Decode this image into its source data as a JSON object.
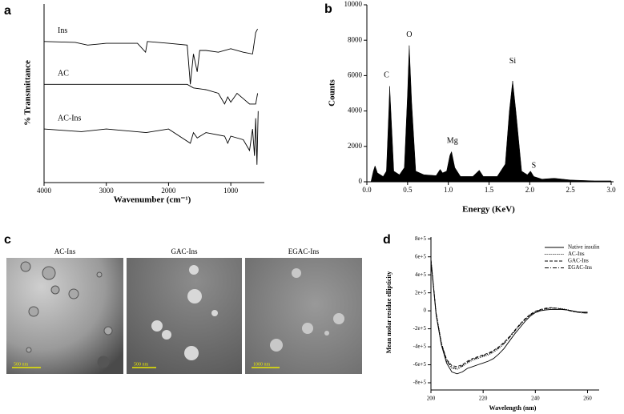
{
  "chart_data": [
    {
      "type": "line",
      "panel_label": "a",
      "xlabel": "Wavenumber (cm⁻¹)",
      "ylabel": "% Transmittance",
      "xlim": [
        4000,
        500
      ],
      "xticks": [
        4000,
        3000,
        2000,
        1000
      ],
      "ylim": [
        0,
        100
      ],
      "series": [
        {
          "name": "Ins",
          "color": "#000000",
          "x": [
            4000,
            3500,
            3300,
            3000,
            2500,
            2370,
            2340,
            2000,
            1700,
            1650,
            1600,
            1540,
            1500,
            1400,
            1200,
            1000,
            800,
            650,
            600,
            570
          ],
          "values": [
            79,
            78.5,
            77,
            78,
            78,
            73,
            79,
            78,
            77,
            55,
            72,
            62,
            74,
            74,
            73,
            75,
            73,
            72,
            84,
            86
          ]
        },
        {
          "name": "AC",
          "color": "#000000",
          "x": [
            4000,
            3500,
            3000,
            2500,
            2000,
            1700,
            1600,
            1400,
            1200,
            1100,
            1050,
            1000,
            900,
            800,
            700,
            600,
            570
          ],
          "values": [
            55,
            55,
            55,
            55,
            55,
            55,
            53,
            52,
            50,
            44,
            48,
            45,
            50,
            47,
            44,
            44,
            50
          ]
        },
        {
          "name": "AC-Ins",
          "color": "#000000",
          "x": [
            4000,
            3400,
            3000,
            2360,
            2000,
            1650,
            1600,
            1540,
            1400,
            1100,
            1050,
            1000,
            800,
            700,
            650,
            620,
            600,
            580,
            560
          ],
          "values": [
            30,
            28.5,
            30,
            28,
            30,
            22,
            28,
            25,
            28,
            26,
            22,
            26,
            24,
            18,
            30,
            15,
            36,
            10,
            40
          ]
        }
      ]
    },
    {
      "type": "area",
      "panel_label": "b",
      "xlabel": "Energy (KeV)",
      "ylabel": "Counts",
      "xlim": [
        0,
        3
      ],
      "ylim": [
        0,
        10000
      ],
      "xticks": [
        {
          "value": 0,
          "label": "0.0"
        },
        0.5,
        {
          "value": 1,
          "label": "1.0"
        },
        1.5,
        {
          "value": 2,
          "label": "2.0"
        },
        2.5,
        {
          "value": 3,
          "label": "3.0"
        }
      ],
      "yticks": [
        0,
        2000,
        4000,
        6000,
        8000,
        10000
      ],
      "series": [
        {
          "name": "Counts",
          "color": "#000000",
          "x": [
            0.05,
            0.08,
            0.1,
            0.13,
            0.2,
            0.24,
            0.27,
            0.28,
            0.3,
            0.33,
            0.4,
            0.46,
            0.5,
            0.52,
            0.55,
            0.6,
            0.7,
            0.85,
            0.9,
            0.93,
            0.98,
            1.02,
            1.04,
            1.08,
            1.15,
            1.3,
            1.38,
            1.43,
            1.6,
            1.7,
            1.75,
            1.79,
            1.83,
            1.9,
            1.97,
            2.01,
            2.05,
            2.15,
            2.3,
            2.5,
            2.8,
            3.0
          ],
          "values": [
            0,
            600,
            900,
            500,
            300,
            600,
            4000,
            5400,
            3500,
            600,
            400,
            800,
            5000,
            7700,
            4500,
            600,
            400,
            350,
            700,
            500,
            600,
            1500,
            1700,
            800,
            300,
            300,
            650,
            300,
            300,
            1000,
            4000,
            5700,
            4000,
            600,
            400,
            600,
            300,
            150,
            200,
            100,
            50,
            50
          ]
        }
      ],
      "annotations": [
        {
          "text": "C",
          "x": 0.24,
          "y": 6000
        },
        {
          "text": "O",
          "x": 0.52,
          "y": 8300
        },
        {
          "text": "Mg",
          "x": 1.05,
          "y": 2300
        },
        {
          "text": "Si",
          "x": 1.79,
          "y": 6800
        },
        {
          "text": "S",
          "x": 2.05,
          "y": 900
        }
      ]
    },
    {
      "type": "image",
      "panel_label": "c",
      "panels": [
        {
          "title": "AC-Ins",
          "scale_bar": "500 nm"
        },
        {
          "title": "GAC-Ins",
          "scale_bar": "500 nm"
        },
        {
          "title": "EGAC-Ins",
          "scale_bar": "1000 nm"
        }
      ]
    },
    {
      "type": "line",
      "panel_label": "d",
      "xlabel": "Wavelength (nm)",
      "ylabel": "Mean molar residue ellipticity",
      "xlim": [
        200,
        262
      ],
      "xticks": [
        200,
        220,
        240,
        260
      ],
      "ylim": [
        -880000,
        820000
      ],
      "yticks": [
        {
          "value": -800000,
          "label": "-8e+5"
        },
        {
          "value": -600000,
          "label": "-6e+5"
        },
        {
          "value": -400000,
          "label": "-4e+5"
        },
        {
          "value": -200000,
          "label": "-2e+5"
        },
        0,
        {
          "value": 200000,
          "label": "2e+5"
        },
        {
          "value": 400000,
          "label": "4e+5"
        },
        {
          "value": 600000,
          "label": "6e+5"
        },
        {
          "value": 800000,
          "label": "8e+5"
        }
      ],
      "x": [
        200,
        202,
        204,
        206,
        208,
        210,
        212,
        214,
        216,
        218,
        220,
        222,
        224,
        226,
        228,
        230,
        232,
        234,
        236,
        238,
        240,
        242,
        244,
        246,
        248,
        250,
        252,
        254,
        256,
        258,
        260
      ],
      "series": [
        {
          "name": "Native insulin",
          "color": "#000000",
          "dash": "solid",
          "values": [
            550000,
            -50000,
            -380000,
            -580000,
            -680000,
            -700000,
            -680000,
            -640000,
            -620000,
            -600000,
            -580000,
            -560000,
            -530000,
            -480000,
            -420000,
            -340000,
            -260000,
            -190000,
            -120000,
            -60000,
            -20000,
            0,
            10000,
            15000,
            15000,
            15000,
            10000,
            0,
            -10000,
            -15000,
            -15000
          ]
        },
        {
          "name": "AC-Ins",
          "color": "#000000",
          "dash": "dotted",
          "values": [
            580000,
            -20000,
            -350000,
            -560000,
            -640000,
            -650000,
            -620000,
            -580000,
            -550000,
            -530000,
            -510000,
            -490000,
            -460000,
            -420000,
            -370000,
            -300000,
            -230000,
            -160000,
            -100000,
            -50000,
            -15000,
            5000,
            20000,
            30000,
            30000,
            25000,
            15000,
            0,
            -15000,
            -25000,
            -30000
          ]
        },
        {
          "name": "GAC-Ins",
          "color": "#000000",
          "dash": "dashed",
          "values": [
            560000,
            -30000,
            -360000,
            -540000,
            -610000,
            -620000,
            -600000,
            -560000,
            -530000,
            -510000,
            -490000,
            -470000,
            -440000,
            -400000,
            -350000,
            -290000,
            -220000,
            -150000,
            -90000,
            -40000,
            -5000,
            15000,
            30000,
            35000,
            30000,
            20000,
            10000,
            -5000,
            -15000,
            -20000,
            -25000
          ]
        },
        {
          "name": "EGAC-Ins",
          "color": "#000000",
          "dash": "dashdot",
          "values": [
            570000,
            -40000,
            -370000,
            -550000,
            -630000,
            -640000,
            -610000,
            -570000,
            -540000,
            -520000,
            -500000,
            -480000,
            -450000,
            -410000,
            -360000,
            -300000,
            -230000,
            -160000,
            -95000,
            -45000,
            -10000,
            10000,
            25000,
            30000,
            28000,
            20000,
            10000,
            -5000,
            -15000,
            -20000,
            -20000
          ]
        }
      ]
    }
  ]
}
